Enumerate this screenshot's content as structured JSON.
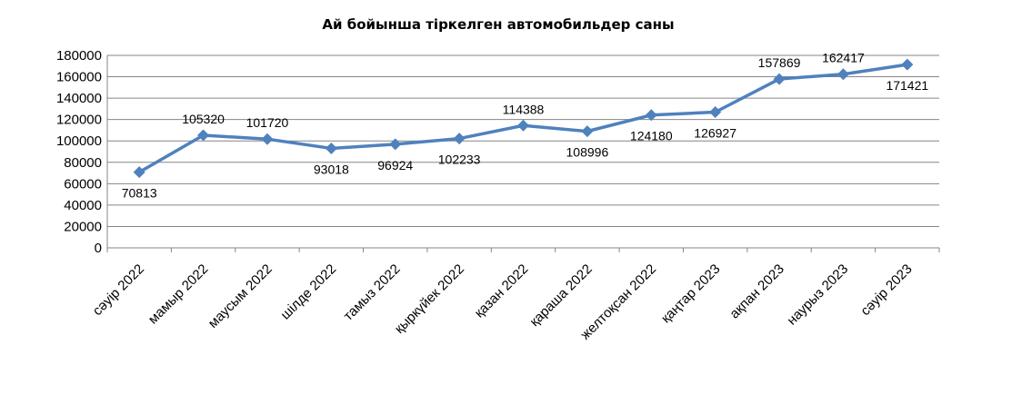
{
  "chart_data": {
    "type": "line",
    "title": "Ай бойынша тіркелген автомобильдер саны",
    "xlabel": "",
    "ylabel": "",
    "categories": [
      "сәуір 2022",
      "мамыр 2022",
      "маусым 2022",
      "шілде 2022",
      "тамыз 2022",
      "қыркүйек 2022",
      "қазан 2022",
      "қараша 2022",
      "желтоқсан 2022",
      "қаңтар 2023",
      "ақпан 2023",
      "наурыз 2023",
      "сәуір 2023"
    ],
    "series": [
      {
        "values": [
          70813,
          105320,
          101720,
          93018,
          96924,
          102233,
          114388,
          108996,
          124180,
          126927,
          157869,
          162417,
          171421
        ],
        "color": "#4F81BD",
        "marker": "diamond"
      }
    ],
    "data_labels": [
      "70813",
      "105320",
      "101720",
      "93018",
      "96924",
      "102233",
      "114388",
      "108996",
      "124180",
      "126927",
      "157869",
      "162417",
      "171421"
    ],
    "label_positions": [
      "below",
      "above",
      "above",
      "below",
      "below",
      "below",
      "above",
      "below",
      "below",
      "below",
      "above",
      "above",
      "below"
    ],
    "ylim": [
      0,
      180000
    ],
    "yticks": [
      "0",
      "20000",
      "40000",
      "60000",
      "80000",
      "100000",
      "120000",
      "140000",
      "160000",
      "180000"
    ],
    "grid": true,
    "legend": "none"
  }
}
